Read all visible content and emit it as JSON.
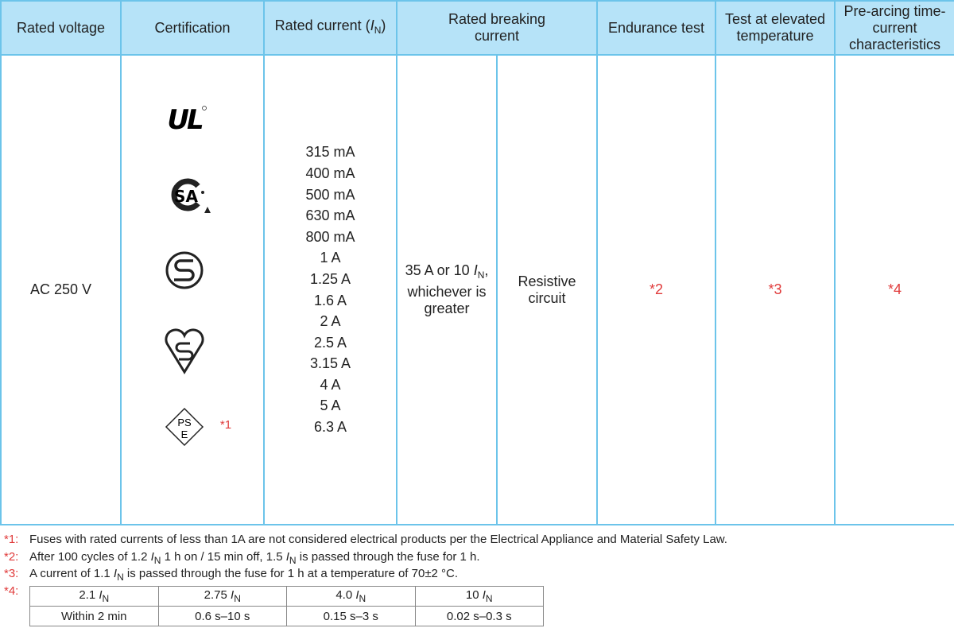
{
  "table": {
    "headers": [
      [
        "Rated voltage"
      ],
      [
        "Certification"
      ],
      [
        "Rated current (",
        "I",
        "N",
        ")"
      ],
      [
        "Rated breaking current"
      ],
      [
        "Endurance test"
      ],
      [
        "Test at elevated temperature"
      ],
      [
        "Pre-arcing time-current characteristics"
      ]
    ],
    "row": {
      "rated_voltage": "AC 250 V",
      "certification_marks": {
        "ul": "UL",
        "csa": "SA",
        "pse": [
          "PS",
          "E"
        ]
      },
      "certification_note": "*1",
      "rated_currents": [
        "315 mA",
        "400 mA",
        "500 mA",
        "630 mA",
        "800 mA",
        "1 A",
        "1.25 A",
        "1.6 A",
        "2 A",
        "2.5 A",
        "3.15 A",
        "4 A",
        "5 A",
        "6.3 A"
      ],
      "breaking_current": [
        "35 A or 10 ",
        "I",
        "N",
        ", whichever is greater"
      ],
      "breaking_circuit": "Resistive circuit",
      "endurance_test": "*2",
      "elevated_temperature_test": "*3",
      "pre_arcing": "*4"
    }
  },
  "footnotes": [
    {
      "mark": "*1:",
      "text": [
        "Fuses with rated currents of less than 1A are not considered electrical products per the Electrical Appliance and Material Safety Law."
      ]
    },
    {
      "mark": "*2:",
      "text": [
        "After 100 cycles of 1.2 ",
        "I",
        "N",
        " 1 h on / 15 min off, 1.5 ",
        "I",
        "N",
        " is passed through the fuse for 1 h."
      ]
    },
    {
      "mark": "*3:",
      "text": [
        "A current of 1.1 ",
        "I",
        "N",
        " is passed through the fuse for 1 h at a temperature of 70±2 °C."
      ]
    },
    {
      "mark": "*4:",
      "table": {
        "header": [
          [
            "2.1 ",
            "I",
            "N"
          ],
          [
            "2.75 ",
            "I",
            "N"
          ],
          [
            "4.0 ",
            "I",
            "N"
          ],
          [
            "10 ",
            "I",
            "N"
          ]
        ],
        "row": [
          "Within 2 min",
          "0.6 s–10 s",
          "0.15 s–3 s",
          "0.02 s–0.3 s"
        ]
      }
    }
  ]
}
